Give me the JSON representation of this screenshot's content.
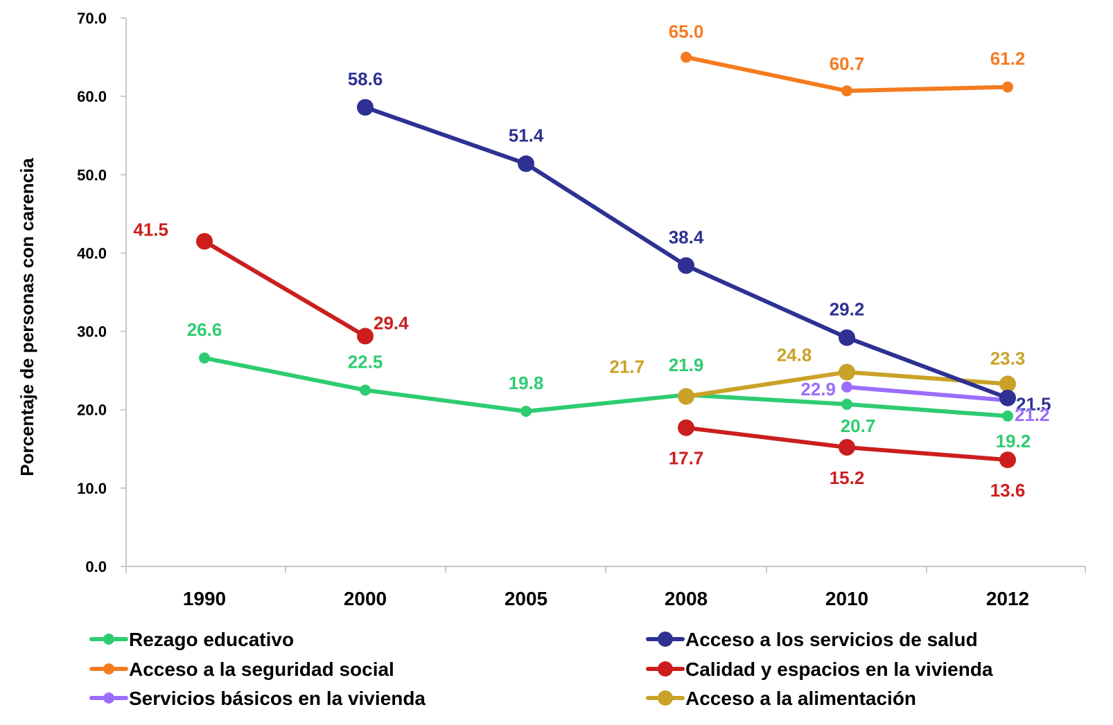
{
  "chart_data": {
    "type": "line",
    "title": "",
    "xlabel": "",
    "ylabel": "Porcentaje de personas con carencia",
    "categories": [
      "1990",
      "2000",
      "2005",
      "2008",
      "2010",
      "2012"
    ],
    "ylim": [
      0,
      70
    ],
    "yticks": [
      "0.0",
      "10.0",
      "20.0",
      "30.0",
      "40.0",
      "50.0",
      "60.0",
      "70.0"
    ],
    "grid": false,
    "legend_position": "bottom",
    "series": [
      {
        "name": "Rezago educativo",
        "color": "#2ecc71",
        "marker": "small",
        "segments": [
          [
            0,
            1,
            2,
            3,
            4,
            5
          ]
        ],
        "values": [
          26.6,
          22.5,
          19.8,
          21.9,
          20.7,
          19.2
        ],
        "labels": [
          "26.6",
          "22.5",
          "19.8",
          "21.9",
          "20.7",
          "19.2"
        ]
      },
      {
        "name": "Acceso a los servicios de salud",
        "color": "#2e3192",
        "marker": "large",
        "segments": [
          [
            1,
            2,
            3,
            4,
            5
          ]
        ],
        "values": [
          null,
          58.6,
          51.4,
          38.4,
          29.2,
          21.5
        ],
        "labels": [
          null,
          "58.6",
          "51.4",
          "38.4",
          "29.2",
          "21.5"
        ]
      },
      {
        "name": "Acceso a la seguridad social",
        "color": "#f47b20",
        "marker": "small",
        "segments": [
          [
            3,
            4,
            5
          ]
        ],
        "values": [
          null,
          null,
          null,
          65.0,
          60.7,
          61.2
        ],
        "labels": [
          null,
          null,
          null,
          "65.0",
          "60.7",
          "61.2"
        ]
      },
      {
        "name": "Calidad y espacios en la vivienda",
        "color": "#cc1e1e",
        "marker": "large",
        "segments": [
          [
            0,
            1
          ],
          [
            3,
            4,
            5
          ]
        ],
        "values": [
          41.5,
          29.4,
          null,
          17.7,
          15.2,
          13.6
        ],
        "labels": [
          "41.5",
          "29.4",
          null,
          "17.7",
          "15.2",
          "13.6"
        ]
      },
      {
        "name": "Servicios básicos en la vivienda",
        "color": "#9b6dfa",
        "marker": "small",
        "segments": [
          [
            4,
            5
          ]
        ],
        "values": [
          null,
          null,
          null,
          null,
          22.9,
          21.2
        ],
        "labels": [
          null,
          null,
          null,
          null,
          "22.9",
          "21.2"
        ]
      },
      {
        "name": "Acceso a la alimentación",
        "color": "#c9a227",
        "marker": "large",
        "segments": [
          [
            3,
            4,
            5
          ]
        ],
        "values": [
          null,
          null,
          null,
          21.7,
          24.8,
          23.3
        ],
        "labels": [
          null,
          null,
          null,
          "21.7",
          "24.8",
          "23.3"
        ]
      }
    ]
  }
}
